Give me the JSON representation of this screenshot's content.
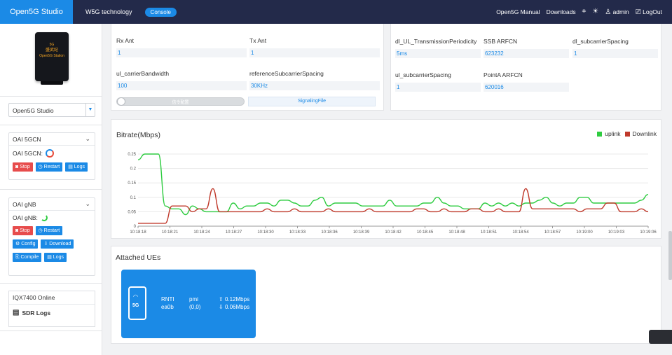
{
  "topbar": {
    "brand": "Open5G Studio",
    "nav1": "W5G technology",
    "nav2": "Console",
    "manual": "Open5G Manual",
    "downloads": "Downloads",
    "user": "admin",
    "logout": "LogOut"
  },
  "sidebar": {
    "device_line1": "5G",
    "device_line2": "盛武纪",
    "device_line3": "Open5G Station",
    "select_value": "Open5G Studio",
    "cn": {
      "title": "OAI 5GCN",
      "status_label": "OAI 5GCN:",
      "stop": "Stop",
      "restart": "Restart",
      "logs": "Logs"
    },
    "gnb": {
      "title": "OAI gNB",
      "status_label": "OAI gNB:",
      "stop": "Stop",
      "restart": "Restart",
      "config": "Config",
      "download": "Download",
      "compile": "Compile",
      "logs": "Logs"
    },
    "sdr": {
      "title": "IQX7400 Online",
      "logs": "SDR Logs"
    }
  },
  "params_left": {
    "rx_ant_label": "Rx Ant",
    "rx_ant": "1",
    "tx_ant_label": "Tx Ant",
    "tx_ant": "1",
    "ul_bw_label": "ul_carrierBandwidth",
    "ul_bw": "100",
    "ref_scs_label": "referenceSubcarrierSpacing",
    "ref_scs": "30KHz",
    "slider_text": "信令配置",
    "signaling_btn": "SignalingFile"
  },
  "params_right": {
    "dl_ul_label": "dl_UL_TransmissionPeriodicity",
    "dl_ul": "5ms",
    "ssb_label": "SSB ARFCN",
    "ssb": "623232",
    "dl_scs_label": "dl_subcarrierSpacing",
    "dl_scs": "1",
    "ul_scs_label": "ul_subcarrierSpacing",
    "ul_scs": "1",
    "pointa_label": "PointA ARFCN",
    "pointa": "620016"
  },
  "chart_data": {
    "type": "line",
    "title": "Bitrate(Mbps)",
    "ylim": [
      0,
      0.25
    ],
    "yticks": [
      "0",
      "0.05",
      "0.1",
      "0.15",
      "0.2",
      "0.25"
    ],
    "xticks": [
      "10:18:18",
      "10:18:21",
      "10:18:24",
      "10:18:27",
      "10:18:30",
      "10:18:33",
      "10:18:36",
      "10:18:39",
      "10:18:42",
      "10:18:45",
      "10:18:48",
      "10:18:51",
      "10:18:54",
      "10:18:57",
      "10:19:00",
      "10:19:03",
      "10:19:06"
    ],
    "legend": "top-right",
    "series": [
      {
        "name": "uplink",
        "color": "#2ecc40",
        "values": [
          0.23,
          0.25,
          0.25,
          0.25,
          0.07,
          0.06,
          0.06,
          0.04,
          0.07,
          0.06,
          0.05,
          0.05,
          0.05,
          0.05,
          0.08,
          0.06,
          0.07,
          0.07,
          0.08,
          0.08,
          0.07,
          0.09,
          0.09,
          0.08,
          0.07,
          0.07,
          0.09,
          0.1,
          0.07,
          0.08,
          0.08,
          0.08,
          0.08,
          0.07,
          0.07,
          0.07,
          0.07,
          0.09,
          0.07,
          0.07,
          0.07,
          0.07,
          0.08,
          0.08,
          0.1,
          0.08,
          0.07,
          0.07,
          0.06,
          0.06,
          0.06,
          0.08,
          0.07,
          0.08,
          0.07,
          0.08,
          0.07,
          0.08,
          0.08,
          0.09,
          0.1,
          0.08,
          0.07,
          0.08,
          0.08,
          0.1,
          0.1,
          0.08,
          0.08,
          0.08,
          0.08,
          0.08,
          0.08,
          0.08,
          0.09,
          0.11
        ]
      },
      {
        "name": "Downlink",
        "color": "#c0392b",
        "values": [
          0.01,
          0.01,
          0.01,
          0.01,
          0.01,
          0.07,
          0.07,
          0.07,
          0.05,
          0.06,
          0.06,
          0.13,
          0.05,
          0.05,
          0.05,
          0.05,
          0.05,
          0.05,
          0.05,
          0.06,
          0.05,
          0.05,
          0.05,
          0.06,
          0.05,
          0.05,
          0.05,
          0.05,
          0.06,
          0.05,
          0.05,
          0.05,
          0.05,
          0.05,
          0.06,
          0.05,
          0.05,
          0.05,
          0.05,
          0.05,
          0.05,
          0.06,
          0.06,
          0.05,
          0.05,
          0.06,
          0.05,
          0.05,
          0.05,
          0.06,
          0.06,
          0.05,
          0.05,
          0.06,
          0.05,
          0.05,
          0.05,
          0.13,
          0.06,
          0.06,
          0.06,
          0.06,
          0.06,
          0.06,
          0.06,
          0.05,
          0.06,
          0.06,
          0.06,
          0.08,
          0.08,
          0.05,
          0.05,
          0.05,
          0.06,
          0.05
        ]
      }
    ]
  },
  "ues": {
    "title": "Attached UEs",
    "list": [
      {
        "rnti_label": "RNTI",
        "rnti": "ea0b",
        "pmi_label": "pmi",
        "pmi": "(0,0)",
        "up": "0.12Mbps",
        "down": "0.06Mbps",
        "phone_label": "5G"
      }
    ]
  },
  "colors": {
    "brand": "#1b8ae6",
    "topbar": "#232a4a",
    "uplink": "#2ecc40",
    "downlink": "#c0392b"
  }
}
